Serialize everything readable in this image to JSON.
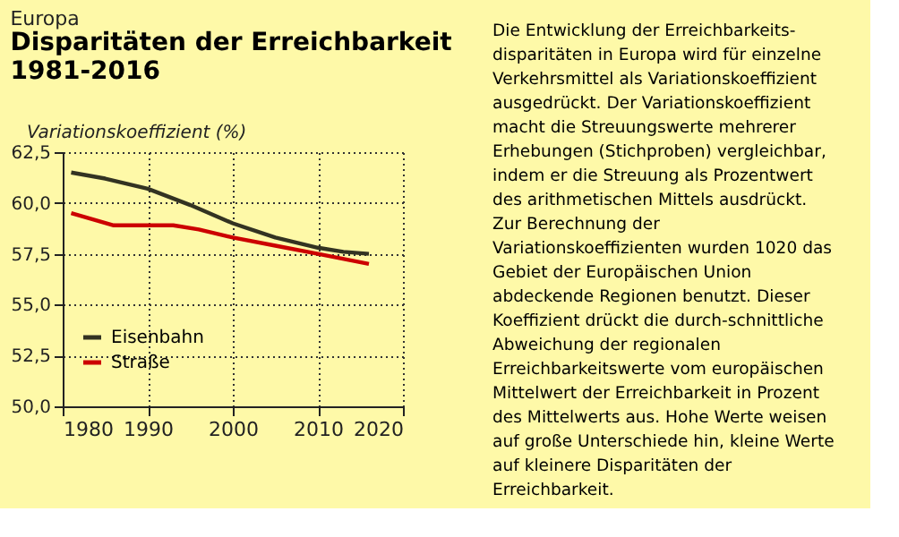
{
  "chart_data": {
    "type": "line",
    "subtitle": "Europa",
    "title": "Disparitäten der Erreichbarkeit\n1981-2016",
    "ylabel": "Variationskoeffizient (%)",
    "series": [
      {
        "name": "Eisenbahn",
        "color": "#333322",
        "x": [
          1981,
          1985,
          1990,
          1995,
          2000,
          2005,
          2010,
          2013,
          2016
        ],
        "values": [
          61.5,
          61.2,
          60.7,
          59.9,
          59.0,
          58.3,
          57.8,
          57.6,
          57.5
        ]
      },
      {
        "name": "Straße",
        "color": "#cc0000",
        "x": [
          1981,
          1986,
          1990,
          1993,
          1996,
          2000,
          2005,
          2010,
          2016
        ],
        "values": [
          59.5,
          58.9,
          58.9,
          58.9,
          58.7,
          58.3,
          57.9,
          57.5,
          57.0
        ]
      }
    ],
    "xlim": [
      1980,
      2020
    ],
    "xticks": [
      1980,
      1990,
      2000,
      2010,
      2020
    ],
    "ylim": [
      50,
      62.5
    ],
    "yticks": [
      {
        "value": 50,
        "label": "50,0"
      },
      {
        "value": 52.5,
        "label": "52,5"
      },
      {
        "value": 55,
        "label": "55,0"
      },
      {
        "value": 57.5,
        "label": "57,5"
      },
      {
        "value": 60,
        "label": "60,0"
      },
      {
        "value": 62.5,
        "label": "62,5"
      }
    ],
    "grid": true,
    "legend": "bottom left",
    "line_style": "solid",
    "marker": "none",
    "annotations": [
      "Die Entwicklung der Erreichbarkeits-\ndisparitäten in Europa wird für einzelne\nVerkehrsmittel als Variationskoeffizient\nausgedrückt. Der Variationskoeffizient\nmacht die Streuungswerte mehrerer\nErhebungen (Stichproben) vergleichbar,\nindem er die Streuung als Prozentwert\ndes arithmetischen Mittels ausdrückt.\nZur Berechnung der\nVariationskoeffizienten wurden 1020 das\nGebiet der Europäischen Union\nabdeckende Regionen benutzt. Dieser\nKoeffizient drückt die durch-schnittliche\nAbweichung der regionalen\nErreichbarkeitswerte vom europäischen\nMittelwert der Erreichbarkeit in Prozent\ndes Mittelwerts aus. Hohe Werte weisen\nauf große Unterschiede hin, kleine Werte\nauf kleinere Disparitäten der\nErreichbarkeit."
    ]
  }
}
